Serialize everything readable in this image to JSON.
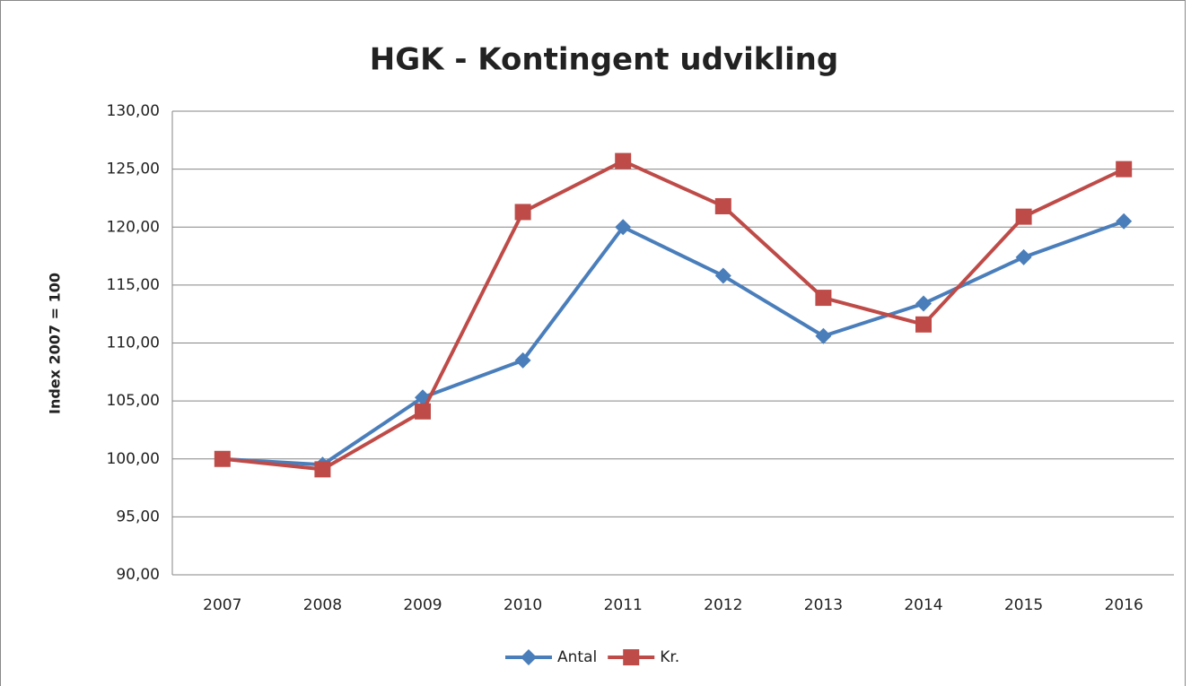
{
  "chart_data": {
    "type": "line",
    "title": "HGK - Kontingent udvikling",
    "y_label": "Index  2007 = 100",
    "categories": [
      "2007",
      "2008",
      "2009",
      "2010",
      "2011",
      "2012",
      "2013",
      "2014",
      "2015",
      "2016"
    ],
    "series": [
      {
        "name": "Antal",
        "color": "#4a7ebb",
        "marker": "diamond",
        "values": [
          100,
          99.5,
          105.3,
          108.5,
          120.0,
          115.8,
          110.6,
          113.4,
          117.4,
          120.5
        ]
      },
      {
        "name": "Kr.",
        "color": "#be4b48",
        "marker": "square",
        "values": [
          100,
          99.1,
          104.1,
          121.3,
          125.7,
          121.8,
          113.9,
          111.6,
          120.9,
          125.0
        ]
      }
    ],
    "ylim": [
      90,
      130
    ],
    "yticks": [
      {
        "value": 90,
        "label": "90,00"
      },
      {
        "value": 95,
        "label": "95,00"
      },
      {
        "value": 100,
        "label": "100,00"
      },
      {
        "value": 105,
        "label": "105,00"
      },
      {
        "value": 110,
        "label": "110,00"
      },
      {
        "value": 115,
        "label": "115,00"
      },
      {
        "value": 120,
        "label": "120,00"
      },
      {
        "value": 125,
        "label": "125,00"
      },
      {
        "value": 130,
        "label": "130,00"
      }
    ],
    "grid": true,
    "legend": "bottom"
  }
}
